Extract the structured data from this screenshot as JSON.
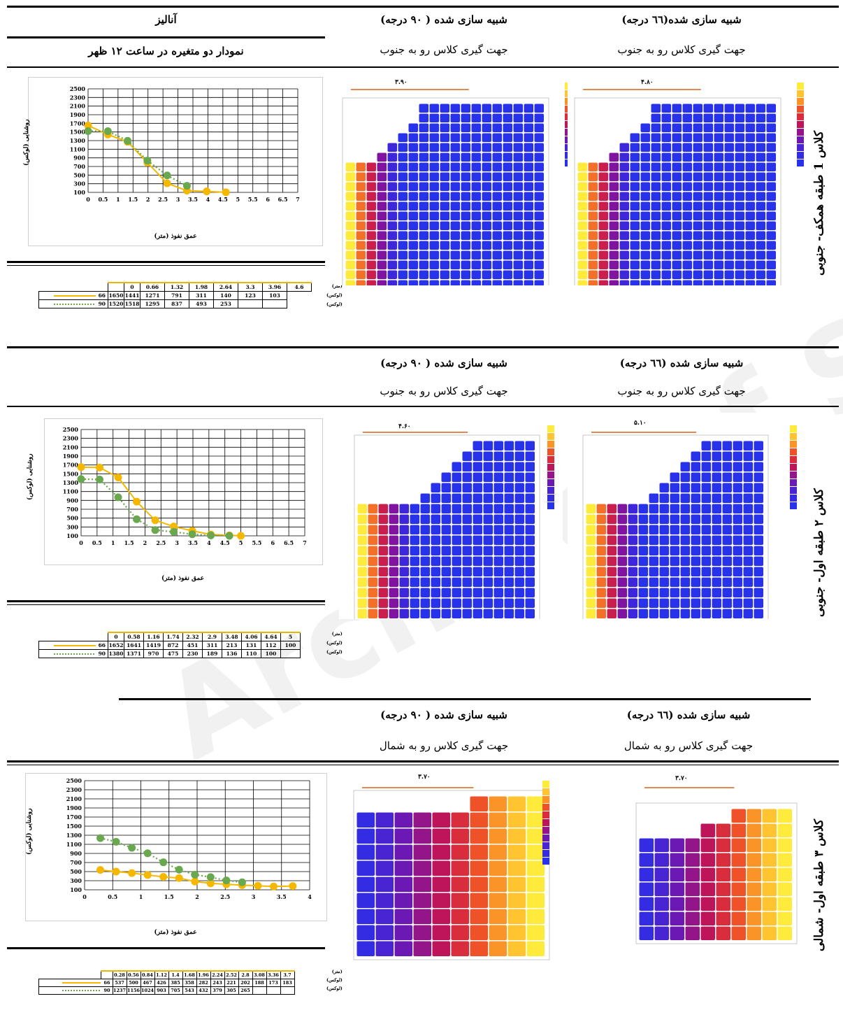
{
  "header": {
    "analysis": "آنالیز",
    "chart_caption": "نمودار دو متغیره در ساعت ۱۲ ظهر"
  },
  "sections": [
    {
      "side_label": "کلاس 1 طبقه همکف- جنوبی",
      "sim90_title": "شبیه سازی  شده ( ۹۰ درجه)",
      "sim90_sub": "جهت گیری کلاس رو به جنوب",
      "sim66_title": "شبیه سازی شده(٦٦ درجه)",
      "sim66_sub": "جهت گیری کلاس رو به جنوب",
      "dim90": "۳.۹۰",
      "dim66": "۴.۸۰"
    },
    {
      "side_label": "کلاس ۲ طبقه اول- جنوبی",
      "sim90_title": "شبیه سازی  شده ( ۹۰ درجه)",
      "sim90_sub": "جهت گیری کلاس رو به جنوب",
      "sim66_title": "شبیه سازی  شده (٦٦ درجه)",
      "sim66_sub": "جهت گیری کلاس رو به جنوب",
      "dim90": "۴.۶۰",
      "dim66": "۵.۱۰"
    },
    {
      "side_label": "کلاس ۳ طبقه اول- شمالی",
      "sim90_title": "شبیه سازی  شده ( ۹۰ درجه)",
      "sim90_sub": "جهت گیری کلاس رو به شمال",
      "sim66_title": "شبیه سازی  شده (٦٦ درجه)",
      "sim66_sub": "جهت گیری کلاس رو به شمال",
      "dim90": "۳.۷۰",
      "dim66": "۳.۷۰"
    }
  ],
  "units": {
    "depth": "(متر)",
    "lux": "(لوکس)"
  },
  "watermark": "Archive of SID",
  "colors": {
    "s66": "#f5b800",
    "s90": "#6aa84f"
  },
  "chart_data": [
    {
      "type": "line",
      "ylabel": "روشنایی (لوکس)",
      "xlabel": "عمق نفوذ (متر)",
      "ylim": [
        100,
        2500
      ],
      "yticks": [
        2500,
        2300,
        2100,
        1900,
        1700,
        1500,
        1300,
        1100,
        900,
        700,
        500,
        300,
        100
      ],
      "xlim": [
        0,
        7
      ],
      "xticks": [
        "0",
        "0.5",
        "1",
        "1.5",
        "2",
        "2.5",
        "3",
        "3.5",
        "4",
        "4.5",
        "5",
        "5.5",
        "6",
        "6.5",
        "7"
      ],
      "x": [
        "0",
        "0.66",
        "1.32",
        "1.98",
        "2.64",
        "3.3",
        "3.96",
        "4.6"
      ],
      "series": [
        {
          "name": "66",
          "x": [
            0,
            0.66,
            1.32,
            1.98,
            2.64,
            3.3,
            3.96,
            4.6
          ],
          "values": [
            1650,
            1441,
            1271,
            791,
            311,
            140,
            123,
            103
          ]
        },
        {
          "name": "90",
          "x": [
            0,
            0.66,
            1.32,
            1.98,
            2.64,
            3.3
          ],
          "values": [
            1520,
            1518,
            1295,
            837,
            493,
            253
          ]
        }
      ]
    },
    {
      "type": "line",
      "ylabel": "روشنایی (لوکس)",
      "xlabel": "عمق نفوذ (متر)",
      "ylim": [
        100,
        2500
      ],
      "yticks": [
        2500,
        2300,
        2100,
        1900,
        1700,
        1500,
        1300,
        1100,
        900,
        700,
        500,
        300,
        100
      ],
      "xlim": [
        0,
        7
      ],
      "xticks": [
        "0",
        "0.5",
        "1",
        "1.5",
        "2",
        "2.5",
        "3",
        "3.5",
        "4",
        "4.5",
        "5",
        "5.5",
        "6",
        "6.5",
        "7"
      ],
      "x": [
        "0",
        "0.58",
        "1.16",
        "1.74",
        "2.32",
        "2.9",
        "3.48",
        "4.06",
        "4.64",
        "5"
      ],
      "series": [
        {
          "name": "66",
          "x": [
            0,
            0.58,
            1.16,
            1.74,
            2.32,
            2.9,
            3.48,
            4.06,
            4.64,
            5
          ],
          "values": [
            1652,
            1641,
            1419,
            872,
            451,
            311,
            213,
            131,
            112,
            100
          ]
        },
        {
          "name": "90",
          "x": [
            0,
            0.58,
            1.16,
            1.74,
            2.32,
            2.9,
            3.48,
            4.06,
            4.64
          ],
          "values": [
            1380,
            1371,
            970,
            475,
            230,
            189,
            136,
            110,
            100
          ]
        }
      ]
    },
    {
      "type": "line",
      "ylabel": "روشنایی (لوکس)",
      "xlabel": "عمق نفوذ (متر)",
      "ylim": [
        100,
        2500
      ],
      "yticks": [
        2500,
        2300,
        2100,
        1900,
        1700,
        1500,
        1300,
        1100,
        900,
        700,
        500,
        300,
        100
      ],
      "xlim": [
        0,
        4
      ],
      "xticks": [
        "0",
        "0.5",
        "1",
        "1.5",
        "2",
        "2.5",
        "3",
        "3.5",
        "4"
      ],
      "x": [
        "0.28",
        "0.56",
        "0.84",
        "1.12",
        "1.4",
        "1.68",
        "1.96",
        "2.24",
        "2.52",
        "2.8",
        "3.08",
        "3.36",
        "3.7"
      ],
      "series": [
        {
          "name": "66",
          "x": [
            0.28,
            0.56,
            0.84,
            1.12,
            1.4,
            1.68,
            1.96,
            2.24,
            2.52,
            2.8,
            3.08,
            3.36,
            3.7
          ],
          "values": [
            537,
            500,
            467,
            426,
            385,
            358,
            282,
            243,
            221,
            202,
            188,
            173,
            183
          ]
        },
        {
          "name": "90",
          "x": [
            0.28,
            0.56,
            0.84,
            1.12,
            1.4,
            1.68,
            1.96,
            2.24,
            2.52,
            2.8
          ],
          "values": [
            1237,
            1156,
            1024,
            903,
            705,
            543,
            432,
            379,
            305,
            265
          ]
        }
      ]
    }
  ]
}
